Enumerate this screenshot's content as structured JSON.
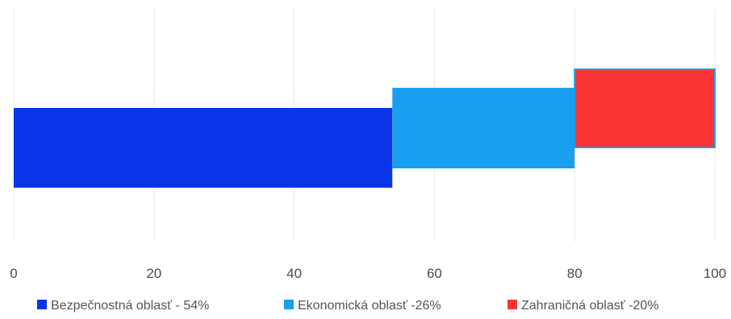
{
  "chart_data": {
    "type": "bar",
    "orientation": "horizontal",
    "stacked": true,
    "categories": [
      ""
    ],
    "series": [
      {
        "name": "Bezpečnostná oblasť - 54%",
        "values": [
          54
        ],
        "color": "#0a35e6"
      },
      {
        "name": "Ekonomická oblasť -26%",
        "values": [
          26
        ],
        "color": "#1a9ef0"
      },
      {
        "name": "Zahraničná oblasť -20%",
        "values": [
          20
        ],
        "color": "#f83434"
      }
    ],
    "xlim": [
      0,
      100
    ],
    "xticks": [
      "0",
      "20",
      "40",
      "60",
      "80",
      "100"
    ],
    "grid": true,
    "legend": "bottom"
  }
}
